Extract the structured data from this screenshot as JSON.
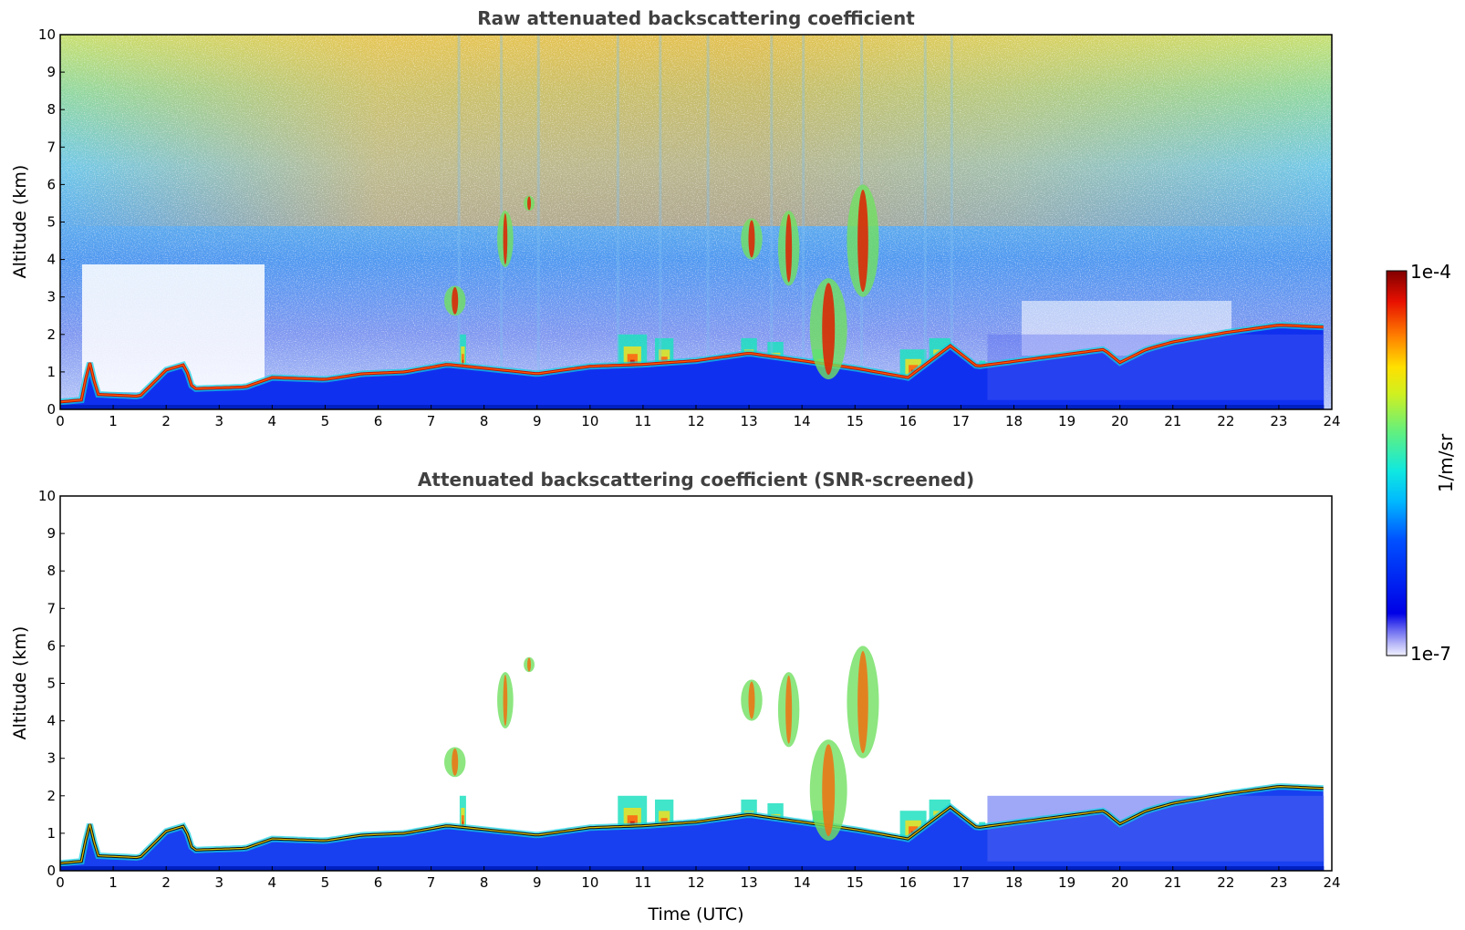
{
  "chart_data": [
    {
      "type": "heatmap",
      "title": "Raw attenuated backscattering coefficient",
      "xlabel": "",
      "ylabel": "Altitude (km)",
      "xlim": [
        0,
        24
      ],
      "ylim": [
        0,
        10
      ],
      "x_ticks": [
        "0",
        "1",
        "2",
        "3",
        "4",
        "5",
        "6",
        "7",
        "8",
        "9",
        "10",
        "11",
        "12",
        "13",
        "14",
        "15",
        "16",
        "17",
        "18",
        "19",
        "20",
        "21",
        "22",
        "23",
        "24"
      ],
      "y_ticks": [
        "0",
        "1",
        "2",
        "3",
        "4",
        "5",
        "6",
        "7",
        "8",
        "9",
        "10"
      ],
      "grid": false,
      "boundary_layer_top_km": [
        {
          "t": 0,
          "z": 0.2
        },
        {
          "t": 0.4,
          "z": 0.25
        },
        {
          "t": 0.55,
          "z": 1.3
        },
        {
          "t": 0.7,
          "z": 0.4
        },
        {
          "t": 1.5,
          "z": 0.35
        },
        {
          "t": 2,
          "z": 1.05
        },
        {
          "t": 2.35,
          "z": 1.2
        },
        {
          "t": 2.5,
          "z": 0.55
        },
        {
          "t": 3.5,
          "z": 0.6
        },
        {
          "t": 4,
          "z": 0.85
        },
        {
          "t": 5,
          "z": 0.8
        },
        {
          "t": 5.7,
          "z": 0.95
        },
        {
          "t": 6.5,
          "z": 1.0
        },
        {
          "t": 7.3,
          "z": 1.2
        },
        {
          "t": 8,
          "z": 1.1
        },
        {
          "t": 9,
          "z": 0.95
        },
        {
          "t": 10,
          "z": 1.15
        },
        {
          "t": 11,
          "z": 1.2
        },
        {
          "t": 12,
          "z": 1.3
        },
        {
          "t": 13,
          "z": 1.5
        },
        {
          "t": 14,
          "z": 1.3
        },
        {
          "t": 15,
          "z": 1.1
        },
        {
          "t": 16,
          "z": 0.85
        },
        {
          "t": 16.8,
          "z": 1.7
        },
        {
          "t": 17.3,
          "z": 1.15
        },
        {
          "t": 19.7,
          "z": 1.6
        },
        {
          "t": 20,
          "z": 1.25
        },
        {
          "t": 20.5,
          "z": 1.6
        },
        {
          "t": 21,
          "z": 1.8
        },
        {
          "t": 22,
          "z": 2.05
        },
        {
          "t": 23,
          "z": 2.25
        },
        {
          "t": 23.8,
          "z": 2.2
        }
      ],
      "cloud_features": [
        {
          "t": [
            7.3,
            7.6
          ],
          "z": [
            2.5,
            3.3
          ]
        },
        {
          "t": [
            8.3,
            8.5
          ],
          "z": [
            3.8,
            5.3
          ]
        },
        {
          "t": [
            8.8,
            8.9
          ],
          "z": [
            5.3,
            5.7
          ]
        },
        {
          "t": [
            12.9,
            13.2
          ],
          "z": [
            4.0,
            5.1
          ]
        },
        {
          "t": [
            13.6,
            13.9
          ],
          "z": [
            3.3,
            5.3
          ]
        },
        {
          "t": [
            14.2,
            14.8
          ],
          "z": [
            0.8,
            3.5
          ]
        },
        {
          "t": [
            14.9,
            15.4
          ],
          "z": [
            3.0,
            6.0
          ]
        }
      ]
    },
    {
      "type": "heatmap",
      "title": "Attenuated backscattering coefficient (SNR-screened)",
      "xlabel": "Time (UTC)",
      "ylabel": "Altitude (km)",
      "xlim": [
        0,
        24
      ],
      "ylim": [
        0,
        10
      ],
      "x_ticks": [
        "0",
        "1",
        "2",
        "3",
        "4",
        "5",
        "6",
        "7",
        "8",
        "9",
        "10",
        "11",
        "12",
        "13",
        "14",
        "15",
        "16",
        "17",
        "18",
        "19",
        "20",
        "21",
        "22",
        "23",
        "24"
      ],
      "y_ticks": [
        "0",
        "1",
        "2",
        "3",
        "4",
        "5",
        "6",
        "7",
        "8",
        "9",
        "10"
      ],
      "grid": false
    }
  ],
  "colorbar": {
    "label": "1/m/sr",
    "max_label": "1e-4",
    "min_label": "1e-7",
    "scale": "log",
    "colormap": "jet"
  }
}
